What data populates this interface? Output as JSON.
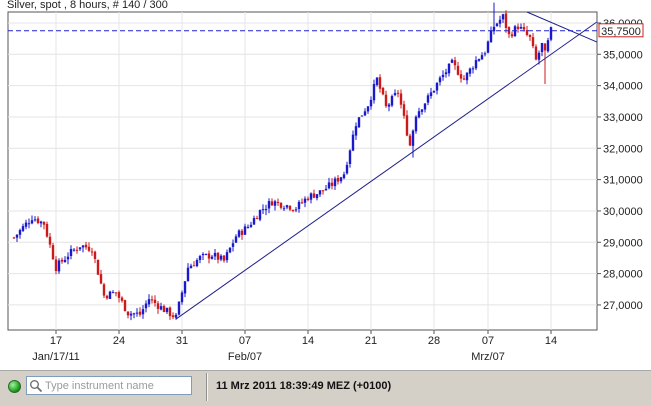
{
  "header": {
    "title": "Silver, spot , 8 hours, # 140 / 300"
  },
  "statusbar": {
    "search_placeholder": "Type instrument name",
    "datetime": "11 Mrz 2011 18:39:49  MEZ (+0100)"
  },
  "colors": {
    "up_candle": "#1a1acc",
    "down_candle": "#cc1a1a",
    "trendline": "#20208c",
    "price_line": "#2222cc",
    "price_tag_border": "#cc2222"
  },
  "icons": {
    "status": "green-status-led",
    "search": "magnifier-search-icon"
  },
  "chart_data": {
    "type": "candlestick",
    "title": "Silver, spot , 8 hours, # 140 / 300",
    "ylim": [
      26200,
      36350
    ],
    "y_ticks": [
      27000,
      28000,
      29000,
      30000,
      31000,
      32000,
      33000,
      34000,
      35000,
      36000
    ],
    "y_tick_labels": [
      "27,0000",
      "28,0000",
      "29,0000",
      "30,0000",
      "31,0000",
      "32,0000",
      "33,0000",
      "34,0000",
      "35,0000",
      "36,0000"
    ],
    "x_ticks": [
      {
        "label": "17",
        "sub": "Jan/17/11",
        "candle": 14
      },
      {
        "label": "24",
        "sub": "",
        "candle": 35
      },
      {
        "label": "31",
        "sub": "",
        "candle": 56
      },
      {
        "label": "07",
        "sub": "Feb/07",
        "candle": 77
      },
      {
        "label": "14",
        "sub": "",
        "candle": 98
      },
      {
        "label": "21",
        "sub": "",
        "candle": 119
      },
      {
        "label": "28",
        "sub": "",
        "candle": 140
      },
      {
        "label": "07",
        "sub": "Mrz/07",
        "candle": 158
      },
      {
        "label": "14",
        "sub": "",
        "candle": 179
      }
    ],
    "current_price": {
      "value": 35750,
      "label": "35,7500"
    },
    "trendlines": [
      {
        "from": {
          "candle": 54,
          "y": 26550
        },
        "to": {
          "candle": 199,
          "y": 36350
        }
      },
      {
        "from": {
          "candle": 160,
          "y": 36800
        },
        "to": {
          "candle": 199,
          "y": 35200
        }
      }
    ],
    "anchors": [
      [
        0,
        29150
      ],
      [
        6,
        29800
      ],
      [
        10,
        29600
      ],
      [
        14,
        28200
      ],
      [
        18,
        28600
      ],
      [
        22,
        28900
      ],
      [
        26,
        28800
      ],
      [
        30,
        27300
      ],
      [
        34,
        27400
      ],
      [
        38,
        26750
      ],
      [
        42,
        26700
      ],
      [
        45,
        27200
      ],
      [
        50,
        26850
      ],
      [
        54,
        26600
      ],
      [
        58,
        28200
      ],
      [
        62,
        28500
      ],
      [
        66,
        28600
      ],
      [
        70,
        28400
      ],
      [
        74,
        29200
      ],
      [
        78,
        29500
      ],
      [
        82,
        30000
      ],
      [
        86,
        30300
      ],
      [
        90,
        30200
      ],
      [
        94,
        30100
      ],
      [
        98,
        30450
      ],
      [
        102,
        30600
      ],
      [
        106,
        30850
      ],
      [
        110,
        31200
      ],
      [
        114,
        32800
      ],
      [
        118,
        33400
      ],
      [
        121,
        34200
      ],
      [
        124,
        33300
      ],
      [
        128,
        33800
      ],
      [
        132,
        32100
      ],
      [
        134,
        33100
      ],
      [
        138,
        33600
      ],
      [
        142,
        34200
      ],
      [
        146,
        34700
      ],
      [
        150,
        34200
      ],
      [
        154,
        34800
      ],
      [
        157,
        35100
      ],
      [
        160,
        35900
      ],
      [
        163,
        36200
      ],
      [
        165,
        35600
      ],
      [
        168,
        35900
      ],
      [
        170,
        35700
      ],
      [
        172,
        35500
      ],
      [
        174,
        34800
      ],
      [
        176,
        35300
      ],
      [
        177,
        35000
      ],
      [
        179,
        35750
      ]
    ]
  }
}
